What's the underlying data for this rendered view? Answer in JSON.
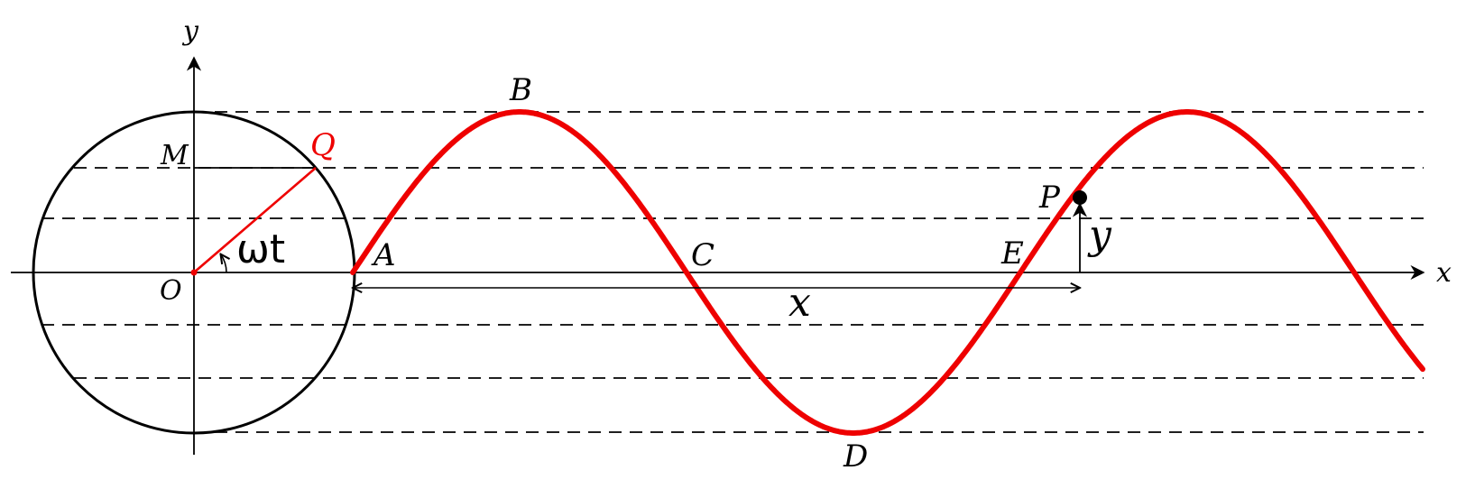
{
  "labels": {
    "y_axis": "y",
    "x_axis": "x",
    "origin": "O",
    "M": "M",
    "Q": "Q",
    "angle": "ωt",
    "A": "A",
    "B": "B",
    "C": "C",
    "D": "D",
    "E": "E",
    "P": "P",
    "y_displacement": "y",
    "x_distance": "x"
  },
  "colors": {
    "wave": "#ee0000",
    "radius": "#ee0000",
    "q_label": "#ee0000",
    "lines": "#000000"
  },
  "wave": {
    "cycles_shown": 1.75,
    "start_phase": "zero crossing rising at A"
  }
}
